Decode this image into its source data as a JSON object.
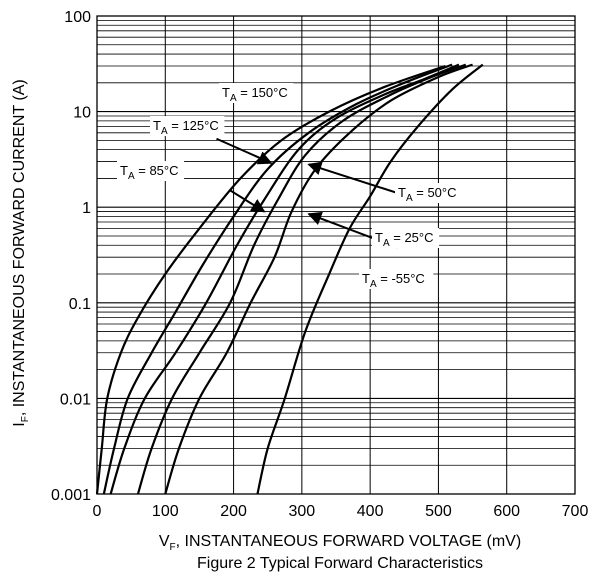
{
  "chart_data": {
    "type": "line",
    "caption": "Figure 2 Typical Forward Characteristics",
    "xlabel_prefix": "V",
    "xlabel_sub": "F",
    "xlabel_rest": ", INSTANTANEOUS FORWARD VOLTAGE (mV)",
    "ylabel_prefix": "I",
    "ylabel_sub": "F",
    "ylabel_rest": ", INSTANTANEOUS FORWARD CURRENT (A)",
    "x_scale": "linear",
    "y_scale": "log",
    "xlim": [
      0,
      700
    ],
    "ylim": [
      0.001,
      100
    ],
    "x_ticks": [
      "0",
      "100",
      "200",
      "300",
      "400",
      "500",
      "600",
      "700"
    ],
    "y_ticks": [
      "0.001",
      "0.01",
      "0.1",
      "1",
      "10",
      "100"
    ],
    "grid": true,
    "series": [
      {
        "name": "TA = 150°C",
        "label_prefix": "T",
        "label_sub": "A",
        "label_rest": " = 150°C",
        "points": [
          [
            0,
            0.001
          ],
          [
            7,
            0.003
          ],
          [
            15,
            0.01
          ],
          [
            35,
            0.03
          ],
          [
            60,
            0.07
          ],
          [
            100,
            0.2
          ],
          [
            150,
            0.6
          ],
          [
            210,
            2
          ],
          [
            270,
            5
          ],
          [
            340,
            10
          ],
          [
            420,
            18
          ],
          [
            510,
            30
          ]
        ]
      },
      {
        "name": "TA = 125°C",
        "label_prefix": "T",
        "label_sub": "A",
        "label_rest": " = 125°C",
        "points": [
          [
            10,
            0.001
          ],
          [
            25,
            0.003
          ],
          [
            45,
            0.01
          ],
          [
            80,
            0.03
          ],
          [
            115,
            0.08
          ],
          [
            155,
            0.25
          ],
          [
            200,
            0.8
          ],
          [
            250,
            2.5
          ],
          [
            310,
            6
          ],
          [
            380,
            12
          ],
          [
            450,
            20
          ],
          [
            520,
            31
          ]
        ]
      },
      {
        "name": "TA = 85°C",
        "label_prefix": "T",
        "label_sub": "A",
        "label_rest": " = 85°C",
        "points": [
          [
            20,
            0.001
          ],
          [
            40,
            0.003
          ],
          [
            70,
            0.01
          ],
          [
            115,
            0.03
          ],
          [
            160,
            0.1
          ],
          [
            205,
            0.4
          ],
          [
            245,
            1.2
          ],
          [
            295,
            4
          ],
          [
            350,
            8.5
          ],
          [
            420,
            15
          ],
          [
            480,
            22
          ],
          [
            530,
            31
          ]
        ]
      },
      {
        "name": "TA = 50°C",
        "label_prefix": "T",
        "label_sub": "A",
        "label_rest": " = 50°C",
        "points": [
          [
            60,
            0.001
          ],
          [
            80,
            0.003
          ],
          [
            110,
            0.01
          ],
          [
            150,
            0.03
          ],
          [
            195,
            0.1
          ],
          [
            230,
            0.4
          ],
          [
            265,
            1.2
          ],
          [
            305,
            3.5
          ],
          [
            360,
            8
          ],
          [
            430,
            15
          ],
          [
            490,
            23
          ],
          [
            540,
            31
          ]
        ]
      },
      {
        "name": "TA = 25°C",
        "label_prefix": "T",
        "label_sub": "A",
        "label_rest": " = 25°C",
        "points": [
          [
            100,
            0.001
          ],
          [
            120,
            0.003
          ],
          [
            150,
            0.01
          ],
          [
            190,
            0.03
          ],
          [
            225,
            0.1
          ],
          [
            260,
            0.3
          ],
          [
            285,
            0.9
          ],
          [
            320,
            2.5
          ],
          [
            370,
            6
          ],
          [
            430,
            13
          ],
          [
            500,
            23
          ],
          [
            550,
            31
          ]
        ]
      },
      {
        "name": "TA = -55°C",
        "label_prefix": "T",
        "label_sub": "A",
        "label_rest": " = -55°C",
        "points": [
          [
            235,
            0.001
          ],
          [
            250,
            0.003
          ],
          [
            275,
            0.01
          ],
          [
            305,
            0.05
          ],
          [
            340,
            0.2
          ],
          [
            370,
            0.6
          ],
          [
            400,
            1.3
          ],
          [
            430,
            3
          ],
          [
            470,
            7
          ],
          [
            520,
            17
          ],
          [
            565,
            31
          ]
        ]
      }
    ],
    "annotations": [
      {
        "series": 0,
        "arrow_from": [
          165,
          13
        ],
        "arrow_to": [
          150,
          11
        ]
      },
      {
        "series": 1,
        "arrow_from": [
          175,
          5.2
        ],
        "arrow_to": [
          255,
          2.9
        ]
      },
      {
        "series": 2,
        "arrow_from": [
          195,
          1.5
        ],
        "arrow_to": [
          245,
          0.9
        ]
      },
      {
        "series": 3,
        "arrow_from": [
          470,
          1.2
        ],
        "arrow_to": [
          310,
          2.8
        ]
      },
      {
        "series": 4,
        "arrow_from": [
          440,
          0.38
        ],
        "arrow_to": [
          310,
          0.85
        ]
      },
      {
        "series": 5,
        "arrow_from": [
          440,
          0.12
        ],
        "arrow_to": [
          440,
          0.12
        ]
      }
    ]
  }
}
